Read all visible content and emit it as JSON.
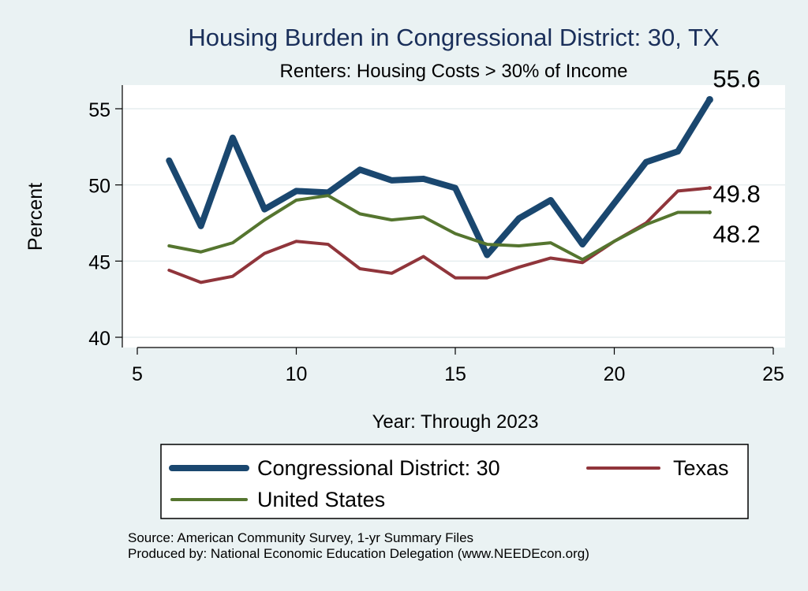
{
  "chart_data": {
    "type": "line",
    "title": "Housing Burden in Congressional District:  30, TX",
    "subtitle": "Renters: Housing Costs > 30% of Income",
    "xlabel": "Year: Through 2023",
    "ylabel": "Percent",
    "xlim": [
      5,
      25
    ],
    "ylim": [
      40,
      56
    ],
    "xticks": [
      5,
      10,
      15,
      20,
      25
    ],
    "yticks": [
      40,
      45,
      50,
      55
    ],
    "grid": true,
    "legend_position": "bottom",
    "x": [
      6,
      7,
      8,
      9,
      10,
      11,
      12,
      13,
      14,
      15,
      16,
      17,
      18,
      19,
      20,
      21,
      22,
      23
    ],
    "series": [
      {
        "name": "Congressional District:  30",
        "color": "#1a476f",
        "values": [
          51.6,
          47.3,
          53.1,
          48.4,
          49.6,
          49.5,
          51.0,
          50.3,
          50.4,
          49.8,
          45.4,
          47.8,
          49.0,
          46.1,
          48.8,
          51.5,
          52.2,
          55.6
        ],
        "end_label": "55.6"
      },
      {
        "name": "Texas",
        "color": "#90353b",
        "values": [
          44.4,
          43.6,
          44.0,
          45.5,
          46.3,
          46.1,
          44.5,
          44.2,
          45.3,
          43.9,
          43.9,
          44.6,
          45.2,
          44.9,
          46.3,
          47.5,
          49.6,
          49.8
        ],
        "end_label": "49.8"
      },
      {
        "name": "United States",
        "color": "#55752f",
        "values": [
          46.0,
          45.6,
          46.2,
          47.7,
          49.0,
          49.3,
          48.1,
          47.7,
          47.9,
          46.8,
          46.1,
          46.0,
          46.2,
          45.1,
          46.3,
          47.4,
          48.2,
          48.2
        ],
        "end_label": "48.2"
      }
    ]
  },
  "footer": {
    "source": "Source: American Community Survey, 1-yr Summary Files",
    "produced_by": "Produced by: National Economic Education Delegation (www.NEEDEcon.org)"
  }
}
